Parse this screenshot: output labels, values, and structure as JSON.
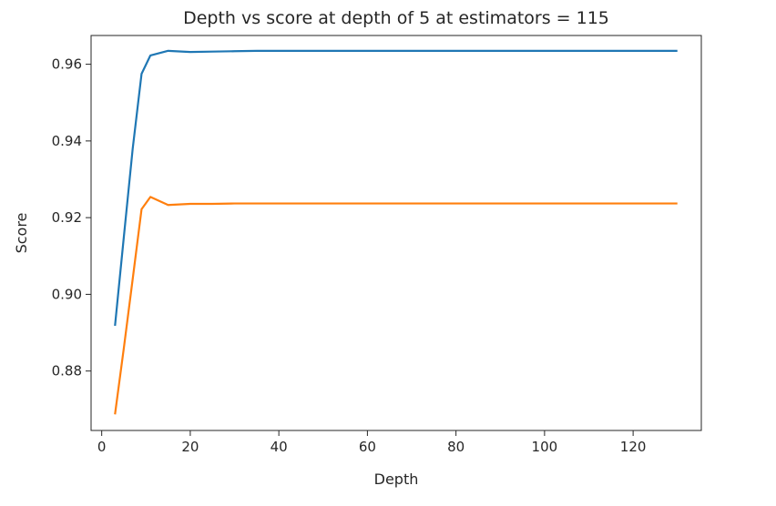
{
  "chart_data": {
    "type": "line",
    "title": "Depth vs score at depth of 5 at estimators = 115",
    "xlabel": "Depth",
    "ylabel": "Score",
    "xlim": [
      -2.4,
      135.4
    ],
    "ylim": [
      0.8645,
      0.9675
    ],
    "xticks": [
      0,
      20,
      40,
      60,
      80,
      100,
      120
    ],
    "yticks": [
      0.88,
      0.9,
      0.92,
      0.94,
      0.96
    ],
    "ytick_labels": [
      "0.88",
      "0.90",
      "0.92",
      "0.94",
      "0.96"
    ],
    "xtick_labels": [
      "0",
      "20",
      "40",
      "60",
      "80",
      "100",
      "120"
    ],
    "grid": false,
    "series": [
      {
        "color": "#1f77b4",
        "x": [
          3,
          5,
          7,
          9,
          11,
          15,
          20,
          25,
          30,
          35,
          40,
          50,
          60,
          70,
          80,
          90,
          100,
          110,
          120,
          130
        ],
        "y": [
          0.8918,
          0.915,
          0.938,
          0.9575,
          0.9623,
          0.9635,
          0.9632,
          0.9633,
          0.9634,
          0.9635,
          0.9635,
          0.9635,
          0.9635,
          0.9635,
          0.9635,
          0.9635,
          0.9635,
          0.9635,
          0.9635,
          0.9635
        ]
      },
      {
        "color": "#ff7f0e",
        "x": [
          3,
          5,
          7,
          9,
          11,
          15,
          20,
          25,
          30,
          35,
          40,
          50,
          60,
          70,
          80,
          90,
          100,
          110,
          120,
          130
        ],
        "y": [
          0.8687,
          0.886,
          0.904,
          0.9222,
          0.9254,
          0.9233,
          0.9236,
          0.9236,
          0.9237,
          0.9237,
          0.9237,
          0.9237,
          0.9237,
          0.9237,
          0.9237,
          0.9237,
          0.9237,
          0.9237,
          0.9237,
          0.9237
        ]
      }
    ]
  }
}
